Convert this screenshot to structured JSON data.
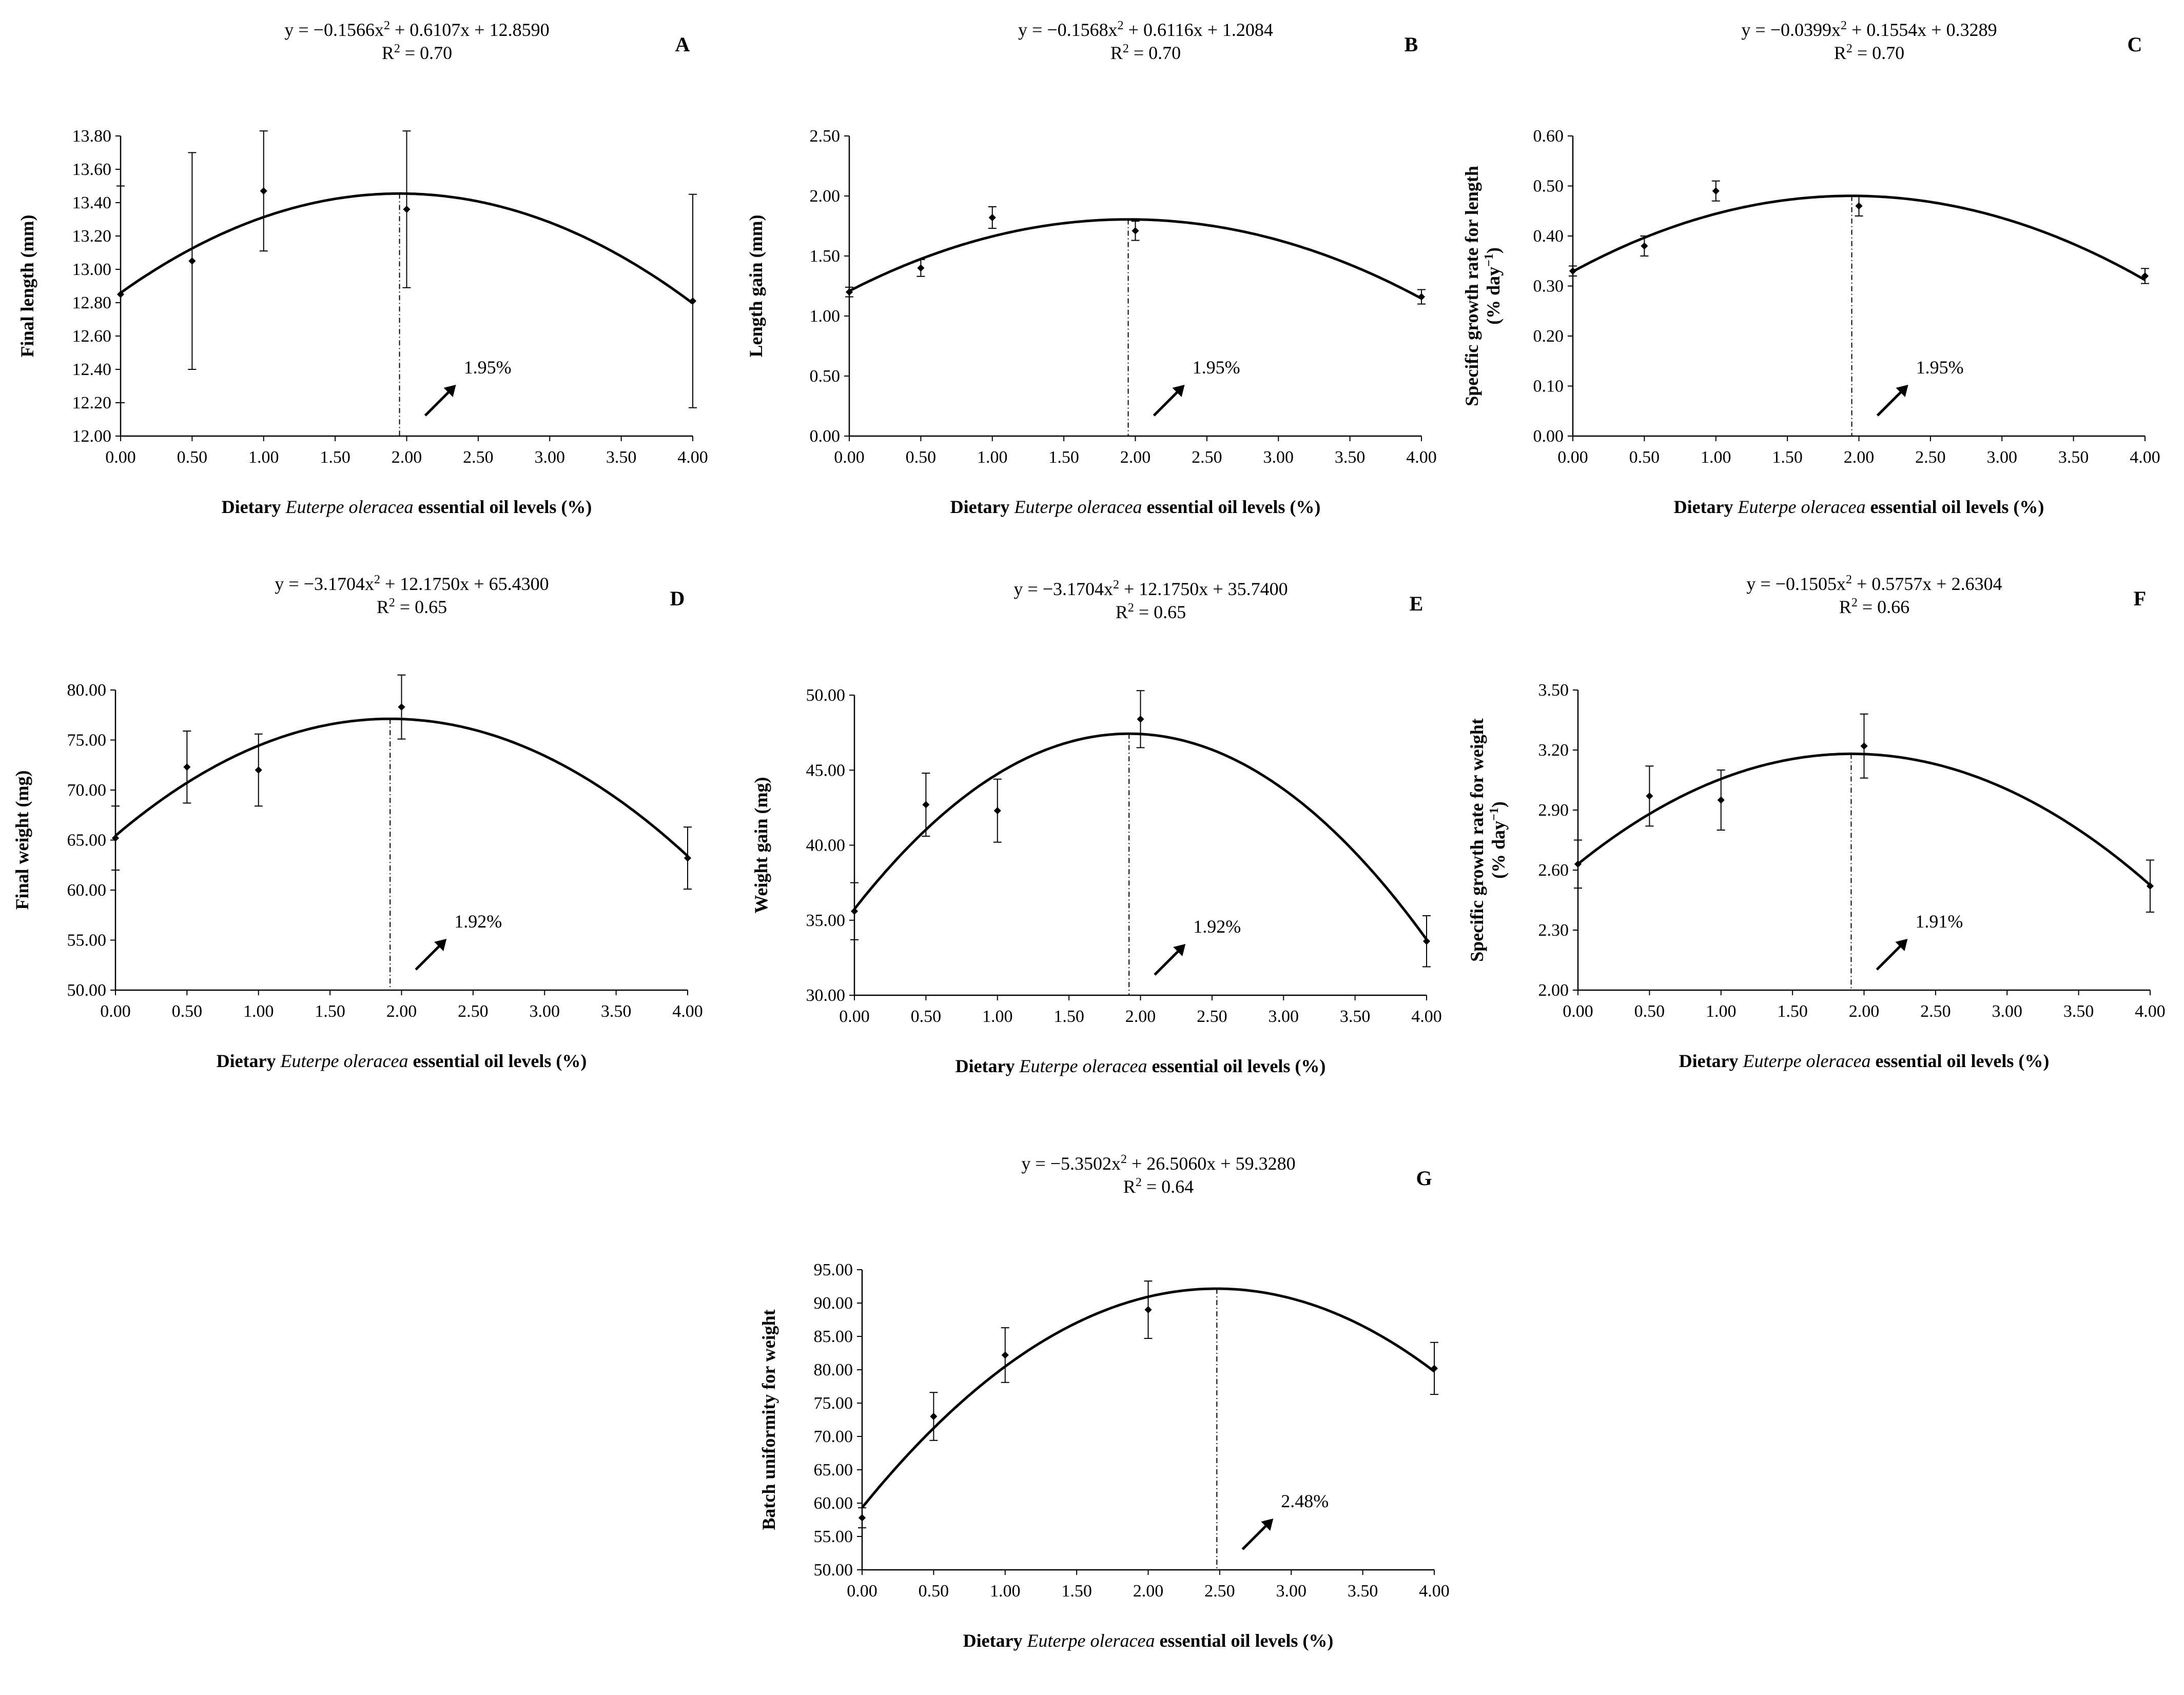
{
  "figure": {
    "panels": [
      {
        "letter": "A",
        "equation_parts": [
          "y = −0.1566x",
          "2",
          " + 0.6107x + 12.8590"
        ],
        "r2_parts": [
          "R",
          "2",
          " =  0.70"
        ],
        "ylabel_lines": [
          "Final length (mm)"
        ],
        "xlabel_parts": [
          "Dietary ",
          "Euterpe oleracea",
          " essential oil levels (%)"
        ],
        "optimum_label": "1.95%"
      },
      {
        "letter": "B",
        "equation_parts": [
          "y = −0.1568x",
          "2",
          " + 0.6116x + 1.2084"
        ],
        "r2_parts": [
          "R",
          "2",
          " =  0.70"
        ],
        "ylabel_lines": [
          "Length gain (mm)"
        ],
        "xlabel_parts": [
          "Dietary ",
          "Euterpe oleracea",
          " essential oil levels (%)"
        ],
        "optimum_label": "1.95%"
      },
      {
        "letter": "C",
        "equation_parts": [
          "y = −0.0399x",
          "2",
          " + 0.1554x + 0.3289"
        ],
        "r2_parts": [
          "R",
          "2",
          " =  0.70"
        ],
        "ylabel_lines": [
          "Specific growth rate for length",
          "(% day"
        ],
        "ylabel_sup": "−1",
        "ylabel_tail": ")",
        "xlabel_parts": [
          "Dietary ",
          "Euterpe oleracea",
          " essential oil levels (%)"
        ],
        "optimum_label": "1.95%"
      },
      {
        "letter": "D",
        "equation_parts": [
          "y = −3.1704x",
          "2",
          " + 12.1750x + 65.4300"
        ],
        "r2_parts": [
          "R",
          "2",
          " =  0.65"
        ],
        "ylabel_lines": [
          "Final weight (mg)"
        ],
        "xlabel_parts": [
          "Dietary ",
          "Euterpe oleracea",
          " essential oil levels (%)"
        ],
        "optimum_label": "1.92%"
      },
      {
        "letter": "E",
        "equation_parts": [
          "y = −3.1704x",
          "2",
          " + 12.1750x + 35.7400"
        ],
        "r2_parts": [
          "R",
          "2",
          " =  0.65"
        ],
        "ylabel_lines": [
          "Weight gain (mg)"
        ],
        "xlabel_parts": [
          "Dietary ",
          "Euterpe oleracea",
          " essential oil levels (%)"
        ],
        "optimum_label": "1.92%"
      },
      {
        "letter": "F",
        "equation_parts": [
          "y = −0.1505x",
          "2",
          " + 0.5757x + 2.6304"
        ],
        "r2_parts": [
          "R",
          "2",
          " =  0.66"
        ],
        "ylabel_lines": [
          "Specific growth rate for weight",
          "(% day"
        ],
        "ylabel_sup": "−1",
        "ylabel_tail": ")",
        "xlabel_parts": [
          "Dietary ",
          "Euterpe oleracea",
          " essential oil levels (%)"
        ],
        "optimum_label": "1.91%"
      },
      {
        "letter": "G",
        "equation_parts": [
          "y = −5.3502x",
          "2",
          " + 26.5060x + 59.3280"
        ],
        "r2_parts": [
          "R",
          "2",
          " =  0.64"
        ],
        "ylabel_lines": [
          "Batch uniformity  for weight"
        ],
        "xlabel_parts": [
          "Dietary ",
          "Euterpe oleracea",
          " essential oil levels (%)"
        ],
        "optimum_label": "2.48%"
      }
    ]
  },
  "chart_data": [
    {
      "type": "scatter",
      "title": "A",
      "xlabel": "Dietary Euterpe oleracea essential oil levels (%)",
      "ylabel": "Final length (mm)",
      "xlim": [
        0,
        4
      ],
      "ylim": [
        12.0,
        13.8
      ],
      "xticks": [
        "0.00",
        "0.50",
        "1.00",
        "1.50",
        "2.00",
        "2.50",
        "3.00",
        "3.50",
        "4.00"
      ],
      "yticks": [
        "12.00",
        "12.20",
        "12.40",
        "12.60",
        "12.80",
        "13.00",
        "13.20",
        "13.40",
        "13.60",
        "13.80"
      ],
      "x": [
        0,
        0.5,
        1,
        2,
        4
      ],
      "y": [
        12.85,
        13.05,
        13.47,
        13.36,
        12.81
      ],
      "error": [
        0.65,
        0.65,
        0.36,
        0.47,
        0.64
      ],
      "fit": {
        "a": -0.1566,
        "b": 0.6107,
        "c": 12.859
      },
      "optimum_x": 1.95
    },
    {
      "type": "scatter",
      "title": "B",
      "xlabel": "Dietary Euterpe oleracea essential oil levels (%)",
      "ylabel": "Length gain (mm)",
      "xlim": [
        0,
        4
      ],
      "ylim": [
        0,
        2.5
      ],
      "xticks": [
        "0.00",
        "0.50",
        "1.00",
        "1.50",
        "2.00",
        "2.50",
        "3.00",
        "3.50",
        "4.00"
      ],
      "yticks": [
        "0.00",
        "0.50",
        "1.00",
        "1.50",
        "2.00",
        "2.50"
      ],
      "x": [
        0,
        0.5,
        1,
        2,
        4
      ],
      "y": [
        1.2,
        1.4,
        1.82,
        1.71,
        1.16
      ],
      "error": [
        0.04,
        0.07,
        0.09,
        0.08,
        0.06
      ],
      "fit": {
        "a": -0.1568,
        "b": 0.6116,
        "c": 1.2084
      },
      "optimum_x": 1.95
    },
    {
      "type": "scatter",
      "title": "C",
      "xlabel": "Dietary Euterpe oleracea essential oil levels (%)",
      "ylabel": "Specific growth rate for length (% day−1)",
      "xlim": [
        0,
        4
      ],
      "ylim": [
        0,
        0.6
      ],
      "xticks": [
        "0.00",
        "0.50",
        "1.00",
        "1.50",
        "2.00",
        "2.50",
        "3.00",
        "3.50",
        "4.00"
      ],
      "yticks": [
        "0.00",
        "0.10",
        "0.20",
        "0.30",
        "0.40",
        "0.50",
        "0.60"
      ],
      "x": [
        0,
        0.5,
        1,
        2,
        4
      ],
      "y": [
        0.33,
        0.38,
        0.49,
        0.46,
        0.32
      ],
      "error": [
        0.01,
        0.02,
        0.02,
        0.02,
        0.015
      ],
      "fit": {
        "a": -0.0399,
        "b": 0.1554,
        "c": 0.3289
      },
      "optimum_x": 1.95
    },
    {
      "type": "scatter",
      "title": "D",
      "xlabel": "Dietary Euterpe oleracea essential oil levels (%)",
      "ylabel": "Final weight (mg)",
      "xlim": [
        0,
        4
      ],
      "ylim": [
        50,
        80
      ],
      "xticks": [
        "0.00",
        "0.50",
        "1.00",
        "1.50",
        "2.00",
        "2.50",
        "3.00",
        "3.50",
        "4.00"
      ],
      "yticks": [
        "50.00",
        "55.00",
        "60.00",
        "65.00",
        "70.00",
        "75.00",
        "80.00"
      ],
      "x": [
        0,
        0.5,
        1,
        2,
        4
      ],
      "y": [
        65.2,
        72.3,
        72.0,
        78.3,
        63.2
      ],
      "error": [
        3.2,
        3.6,
        3.6,
        3.2,
        3.1
      ],
      "fit": {
        "a": -3.1704,
        "b": 12.175,
        "c": 65.43
      },
      "optimum_x": 1.92
    },
    {
      "type": "scatter",
      "title": "E",
      "xlabel": "Dietary Euterpe oleracea essential oil levels (%)",
      "ylabel": "Weight gain (mg)",
      "xlim": [
        0,
        4
      ],
      "ylim": [
        30,
        50
      ],
      "xticks": [
        "0.00",
        "0.50",
        "1.00",
        "1.50",
        "2.00",
        "2.50",
        "3.00",
        "3.50",
        "4.00"
      ],
      "yticks": [
        "30.00",
        "35.00",
        "40.00",
        "45.00",
        "50.00"
      ],
      "x": [
        0,
        0.5,
        1,
        2,
        4
      ],
      "y": [
        35.6,
        42.7,
        42.3,
        48.4,
        33.6
      ],
      "error": [
        1.9,
        2.1,
        2.1,
        1.9,
        1.7
      ],
      "fit": {
        "a": -3.1704,
        "b": 12.175,
        "c": 35.74
      },
      "optimum_x": 1.92
    },
    {
      "type": "scatter",
      "title": "F",
      "xlabel": "Dietary Euterpe oleracea essential oil levels (%)",
      "ylabel": "Specific growth rate for weight (% day−1)",
      "xlim": [
        0,
        4
      ],
      "ylim": [
        2.0,
        3.5
      ],
      "xticks": [
        "0.00",
        "0.50",
        "1.00",
        "1.50",
        "2.00",
        "2.50",
        "3.00",
        "3.50",
        "4.00"
      ],
      "yticks": [
        "2.00",
        "2.30",
        "2.60",
        "2.90",
        "3.20",
        "3.50"
      ],
      "x": [
        0,
        0.5,
        1,
        2,
        4
      ],
      "y": [
        2.63,
        2.97,
        2.95,
        3.22,
        2.52
      ],
      "error": [
        0.12,
        0.15,
        0.15,
        0.16,
        0.13
      ],
      "fit": {
        "a": -0.1505,
        "b": 0.5757,
        "c": 2.6304
      },
      "optimum_x": 1.91
    },
    {
      "type": "scatter",
      "title": "G",
      "xlabel": "Dietary Euterpe oleracea essential oil levels (%)",
      "ylabel": "Batch uniformity  for weight",
      "xlim": [
        0,
        4
      ],
      "ylim": [
        50,
        95
      ],
      "xticks": [
        "0.00",
        "0.50",
        "1.00",
        "1.50",
        "2.00",
        "2.50",
        "3.00",
        "3.50",
        "4.00"
      ],
      "yticks": [
        "50.00",
        "55.00",
        "60.00",
        "65.00",
        "70.00",
        "75.00",
        "80.00",
        "85.00",
        "90.00",
        "95.00"
      ],
      "x": [
        0,
        0.5,
        1,
        2,
        4
      ],
      "y": [
        57.8,
        73.0,
        82.2,
        89.0,
        80.2
      ],
      "error": [
        1.5,
        3.6,
        4.1,
        4.3,
        3.9
      ],
      "fit": {
        "a": -5.3502,
        "b": 26.506,
        "c": 59.328
      },
      "optimum_x": 2.48
    }
  ]
}
